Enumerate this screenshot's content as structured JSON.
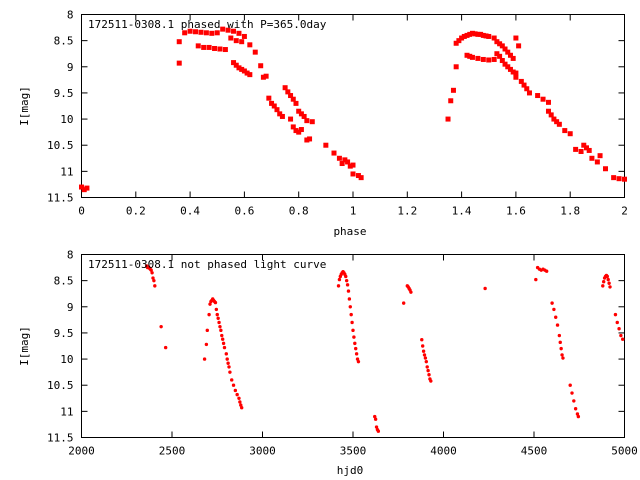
{
  "point_color": "#ff0000",
  "chart_data": [
    {
      "type": "scatter",
      "title": "172511-0308.1 phased with P=365.0day",
      "xlabel": "phase",
      "ylabel": "I[mag]",
      "xlim": [
        0,
        2
      ],
      "ylim": [
        11.5,
        8
      ],
      "y_inverted": true,
      "xticks": [
        "0",
        "0.2",
        "0.4",
        "0.6",
        "0.8",
        "1",
        "1.2",
        "1.4",
        "1.6",
        "1.8",
        "2"
      ],
      "yticks": [
        "8",
        "8.5",
        "9",
        "9.5",
        "10",
        "10.5",
        "11",
        "11.5"
      ],
      "grid": false,
      "series": [
        {
          "points": [
            [
              0.0,
              11.3
            ],
            [
              0.01,
              11.35
            ],
            [
              0.02,
              11.32
            ],
            [
              0.36,
              8.93
            ],
            [
              0.36,
              8.52
            ],
            [
              0.38,
              8.35
            ],
            [
              0.4,
              8.32
            ],
            [
              0.42,
              8.33
            ],
            [
              0.44,
              8.34
            ],
            [
              0.46,
              8.35
            ],
            [
              0.48,
              8.36
            ],
            [
              0.5,
              8.35
            ],
            [
              0.52,
              8.28
            ],
            [
              0.54,
              8.3
            ],
            [
              0.56,
              8.32
            ],
            [
              0.58,
              8.36
            ],
            [
              0.6,
              8.42
            ],
            [
              0.62,
              8.58
            ],
            [
              0.64,
              8.72
            ],
            [
              0.43,
              8.6
            ],
            [
              0.45,
              8.63
            ],
            [
              0.47,
              8.63
            ],
            [
              0.49,
              8.65
            ],
            [
              0.51,
              8.66
            ],
            [
              0.53,
              8.67
            ],
            [
              0.55,
              8.45
            ],
            [
              0.57,
              8.5
            ],
            [
              0.59,
              8.52
            ],
            [
              0.56,
              8.92
            ],
            [
              0.57,
              8.97
            ],
            [
              0.58,
              9.02
            ],
            [
              0.59,
              9.05
            ],
            [
              0.6,
              9.08
            ],
            [
              0.61,
              9.12
            ],
            [
              0.62,
              9.15
            ],
            [
              0.66,
              8.98
            ],
            [
              0.67,
              9.2
            ],
            [
              0.68,
              9.18
            ],
            [
              0.69,
              9.6
            ],
            [
              0.7,
              9.7
            ],
            [
              0.71,
              9.75
            ],
            [
              0.72,
              9.82
            ],
            [
              0.73,
              9.9
            ],
            [
              0.74,
              9.95
            ],
            [
              0.75,
              9.4
            ],
            [
              0.76,
              9.48
            ],
            [
              0.77,
              9.55
            ],
            [
              0.78,
              9.62
            ],
            [
              0.79,
              9.7
            ],
            [
              0.77,
              10.0
            ],
            [
              0.78,
              10.15
            ],
            [
              0.79,
              10.22
            ],
            [
              0.8,
              10.25
            ],
            [
              0.81,
              10.2
            ],
            [
              0.8,
              9.85
            ],
            [
              0.81,
              9.9
            ],
            [
              0.82,
              9.95
            ],
            [
              0.83,
              10.03
            ],
            [
              0.83,
              10.4
            ],
            [
              0.84,
              10.38
            ],
            [
              0.85,
              10.05
            ],
            [
              0.9,
              10.5
            ],
            [
              0.93,
              10.65
            ],
            [
              0.95,
              10.75
            ],
            [
              0.96,
              10.85
            ],
            [
              0.97,
              10.78
            ],
            [
              0.98,
              10.82
            ],
            [
              0.99,
              10.9
            ],
            [
              1.0,
              10.88
            ],
            [
              1.0,
              11.05
            ],
            [
              1.02,
              11.08
            ],
            [
              1.03,
              11.12
            ],
            [
              1.35,
              10.0
            ],
            [
              1.36,
              9.65
            ],
            [
              1.37,
              9.45
            ],
            [
              1.38,
              9.0
            ],
            [
              1.38,
              8.55
            ],
            [
              1.39,
              8.5
            ],
            [
              1.4,
              8.45
            ],
            [
              1.41,
              8.42
            ],
            [
              1.42,
              8.4
            ],
            [
              1.43,
              8.38
            ],
            [
              1.44,
              8.36
            ],
            [
              1.45,
              8.37
            ],
            [
              1.46,
              8.38
            ],
            [
              1.47,
              8.38
            ],
            [
              1.48,
              8.4
            ],
            [
              1.49,
              8.41
            ],
            [
              1.5,
              8.42
            ],
            [
              1.52,
              8.45
            ],
            [
              1.53,
              8.52
            ],
            [
              1.54,
              8.56
            ],
            [
              1.55,
              8.6
            ],
            [
              1.56,
              8.66
            ],
            [
              1.57,
              8.72
            ],
            [
              1.58,
              8.78
            ],
            [
              1.59,
              8.84
            ],
            [
              1.6,
              8.45
            ],
            [
              1.61,
              8.6
            ],
            [
              1.42,
              8.78
            ],
            [
              1.43,
              8.8
            ],
            [
              1.44,
              8.82
            ],
            [
              1.46,
              8.84
            ],
            [
              1.48,
              8.86
            ],
            [
              1.5,
              8.87
            ],
            [
              1.52,
              8.86
            ],
            [
              1.53,
              8.75
            ],
            [
              1.54,
              8.8
            ],
            [
              1.55,
              8.88
            ],
            [
              1.56,
              8.95
            ],
            [
              1.57,
              9.0
            ],
            [
              1.58,
              9.05
            ],
            [
              1.59,
              9.1
            ],
            [
              1.6,
              9.12
            ],
            [
              1.6,
              9.2
            ],
            [
              1.62,
              9.28
            ],
            [
              1.63,
              9.35
            ],
            [
              1.64,
              9.42
            ],
            [
              1.65,
              9.5
            ],
            [
              1.68,
              9.55
            ],
            [
              1.7,
              9.62
            ],
            [
              1.72,
              9.68
            ],
            [
              1.72,
              9.85
            ],
            [
              1.73,
              9.92
            ],
            [
              1.74,
              10.0
            ],
            [
              1.75,
              10.05
            ],
            [
              1.76,
              10.1
            ],
            [
              1.78,
              10.22
            ],
            [
              1.8,
              10.28
            ],
            [
              1.82,
              10.58
            ],
            [
              1.84,
              10.62
            ],
            [
              1.85,
              10.5
            ],
            [
              1.86,
              10.55
            ],
            [
              1.87,
              10.6
            ],
            [
              1.88,
              10.75
            ],
            [
              1.9,
              10.82
            ],
            [
              1.91,
              10.7
            ],
            [
              1.93,
              10.95
            ],
            [
              1.96,
              11.12
            ],
            [
              1.98,
              11.14
            ],
            [
              2.0,
              11.15
            ]
          ]
        }
      ]
    },
    {
      "type": "scatter",
      "title": "172511-0308.1 not phased light curve",
      "xlabel": "hjd0",
      "ylabel": "I[mag]",
      "xlim": [
        2000,
        5000
      ],
      "ylim": [
        11.5,
        8
      ],
      "y_inverted": true,
      "xticks": [
        "2000",
        "2500",
        "3000",
        "3500",
        "4000",
        "4500",
        "5000"
      ],
      "yticks": [
        "8",
        "8.5",
        "9",
        "9.5",
        "10",
        "10.5",
        "11",
        "11.5"
      ],
      "grid": false,
      "series": [
        {
          "points": [
            [
              2360,
              8.22
            ],
            [
              2365,
              8.25
            ],
            [
              2370,
              8.24
            ],
            [
              2375,
              8.26
            ],
            [
              2380,
              8.28
            ],
            [
              2385,
              8.3
            ],
            [
              2390,
              8.35
            ],
            [
              2395,
              8.45
            ],
            [
              2400,
              8.5
            ],
            [
              2405,
              8.6
            ],
            [
              2440,
              9.38
            ],
            [
              2465,
              9.78
            ],
            [
              2680,
              10.0
            ],
            [
              2690,
              9.72
            ],
            [
              2695,
              9.45
            ],
            [
              2705,
              9.15
            ],
            [
              2710,
              8.95
            ],
            [
              2715,
              8.9
            ],
            [
              2720,
              8.88
            ],
            [
              2725,
              8.85
            ],
            [
              2730,
              8.88
            ],
            [
              2735,
              8.9
            ],
            [
              2740,
              8.92
            ],
            [
              2745,
              9.05
            ],
            [
              2750,
              9.15
            ],
            [
              2755,
              9.22
            ],
            [
              2760,
              9.3
            ],
            [
              2765,
              9.38
            ],
            [
              2770,
              9.45
            ],
            [
              2775,
              9.55
            ],
            [
              2780,
              9.62
            ],
            [
              2785,
              9.7
            ],
            [
              2790,
              9.78
            ],
            [
              2800,
              9.9
            ],
            [
              2805,
              10.0
            ],
            [
              2810,
              10.08
            ],
            [
              2815,
              10.15
            ],
            [
              2820,
              10.25
            ],
            [
              2830,
              10.4
            ],
            [
              2840,
              10.5
            ],
            [
              2850,
              10.6
            ],
            [
              2860,
              10.68
            ],
            [
              2870,
              10.75
            ],
            [
              2875,
              10.82
            ],
            [
              2880,
              10.88
            ],
            [
              2885,
              10.93
            ],
            [
              3420,
              8.6
            ],
            [
              3425,
              8.48
            ],
            [
              3430,
              8.42
            ],
            [
              3435,
              8.38
            ],
            [
              3440,
              8.35
            ],
            [
              3445,
              8.33
            ],
            [
              3450,
              8.35
            ],
            [
              3455,
              8.38
            ],
            [
              3460,
              8.42
            ],
            [
              3465,
              8.5
            ],
            [
              3470,
              8.58
            ],
            [
              3475,
              8.7
            ],
            [
              3480,
              8.85
            ],
            [
              3485,
              9.0
            ],
            [
              3490,
              9.15
            ],
            [
              3495,
              9.3
            ],
            [
              3500,
              9.45
            ],
            [
              3505,
              9.58
            ],
            [
              3510,
              9.7
            ],
            [
              3515,
              9.8
            ],
            [
              3520,
              9.9
            ],
            [
              3525,
              10.0
            ],
            [
              3530,
              10.05
            ],
            [
              3620,
              11.1
            ],
            [
              3625,
              11.15
            ],
            [
              3630,
              11.3
            ],
            [
              3635,
              11.35
            ],
            [
              3640,
              11.38
            ],
            [
              3780,
              8.93
            ],
            [
              3800,
              8.6
            ],
            [
              3805,
              8.62
            ],
            [
              3810,
              8.65
            ],
            [
              3815,
              8.68
            ],
            [
              3820,
              8.72
            ],
            [
              3880,
              9.63
            ],
            [
              3885,
              9.75
            ],
            [
              3890,
              9.85
            ],
            [
              3895,
              9.92
            ],
            [
              3900,
              9.98
            ],
            [
              3905,
              10.05
            ],
            [
              3910,
              10.15
            ],
            [
              3915,
              10.22
            ],
            [
              3920,
              10.3
            ],
            [
              3925,
              10.38
            ],
            [
              3930,
              10.42
            ],
            [
              4230,
              8.65
            ],
            [
              4510,
              8.48
            ],
            [
              4520,
              8.25
            ],
            [
              4530,
              8.28
            ],
            [
              4540,
              8.3
            ],
            [
              4550,
              8.28
            ],
            [
              4560,
              8.3
            ],
            [
              4570,
              8.32
            ],
            [
              4600,
              8.93
            ],
            [
              4610,
              9.05
            ],
            [
              4620,
              9.2
            ],
            [
              4630,
              9.35
            ],
            [
              4640,
              9.55
            ],
            [
              4645,
              9.68
            ],
            [
              4650,
              9.8
            ],
            [
              4655,
              9.92
            ],
            [
              4660,
              9.98
            ],
            [
              4700,
              10.5
            ],
            [
              4710,
              10.65
            ],
            [
              4720,
              10.8
            ],
            [
              4730,
              10.95
            ],
            [
              4740,
              11.05
            ],
            [
              4745,
              11.1
            ],
            [
              4880,
              8.6
            ],
            [
              4885,
              8.52
            ],
            [
              4890,
              8.45
            ],
            [
              4895,
              8.42
            ],
            [
              4900,
              8.4
            ],
            [
              4905,
              8.42
            ],
            [
              4910,
              8.48
            ],
            [
              4915,
              8.55
            ],
            [
              4920,
              8.62
            ],
            [
              4950,
              9.15
            ],
            [
              4960,
              9.3
            ],
            [
              4970,
              9.42
            ],
            [
              4980,
              9.55
            ],
            [
              4990,
              9.62
            ]
          ]
        }
      ]
    }
  ]
}
